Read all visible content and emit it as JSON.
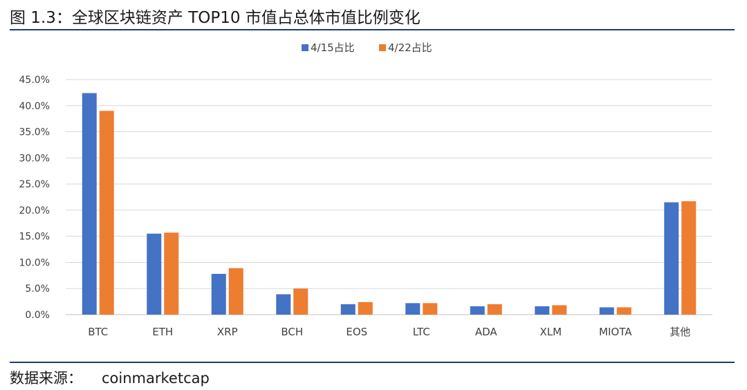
{
  "figure": {
    "title": "图 1.3：全球区块链资产 TOP10 市值占总体市值比例变化",
    "source_label": "数据来源：",
    "source_value": "coinmarketcap"
  },
  "chart_data": {
    "type": "bar",
    "categories": [
      "BTC",
      "ETH",
      "XRP",
      "BCH",
      "EOS",
      "LTC",
      "ADA",
      "XLM",
      "MIOTA",
      "其他"
    ],
    "series": [
      {
        "name": "4/15占比",
        "color": "#4472c4",
        "values": [
          42.4,
          15.5,
          7.8,
          3.9,
          2.0,
          2.2,
          1.6,
          1.6,
          1.4,
          21.5
        ]
      },
      {
        "name": "4/22占比",
        "color": "#ed7d31",
        "values": [
          39.0,
          15.7,
          8.9,
          5.0,
          2.4,
          2.2,
          2.0,
          1.8,
          1.4,
          21.7
        ]
      }
    ],
    "y_ticks": [
      "0.0%",
      "5.0%",
      "10.0%",
      "15.0%",
      "20.0%",
      "25.0%",
      "30.0%",
      "35.0%",
      "40.0%",
      "45.0%"
    ],
    "ylim": [
      0,
      45
    ],
    "grid": true,
    "legend_position": "top-center"
  }
}
